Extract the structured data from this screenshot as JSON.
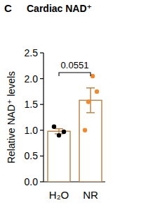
{
  "chart_data": {
    "type": "bar",
    "panel_label": "C",
    "title": "Cardiac NAD⁺",
    "y_label": "Relative NAD⁺ levels",
    "categories": [
      "H₂O",
      "NR"
    ],
    "values": [
      0.98,
      1.58
    ],
    "errors": [
      0.05,
      0.24
    ],
    "points": [
      [
        1.07,
        0.97,
        0.9
      ],
      [
        2.05,
        1.75,
        1.55,
        1.0
      ]
    ],
    "color": "#b8874f",
    "colors": [
      "#000000",
      "#f08a2e"
    ],
    "ylim": [
      0,
      2.5
    ],
    "yticks": [
      {
        "value": 0,
        "label": "0.0"
      },
      0.5,
      {
        "value": 1,
        "label": "1.0"
      },
      1.5,
      {
        "value": 2,
        "label": "2.0"
      },
      2.5
    ],
    "annotations": [
      {
        "text": "0.0551",
        "from": "H₂O",
        "to": "NR"
      }
    ]
  }
}
